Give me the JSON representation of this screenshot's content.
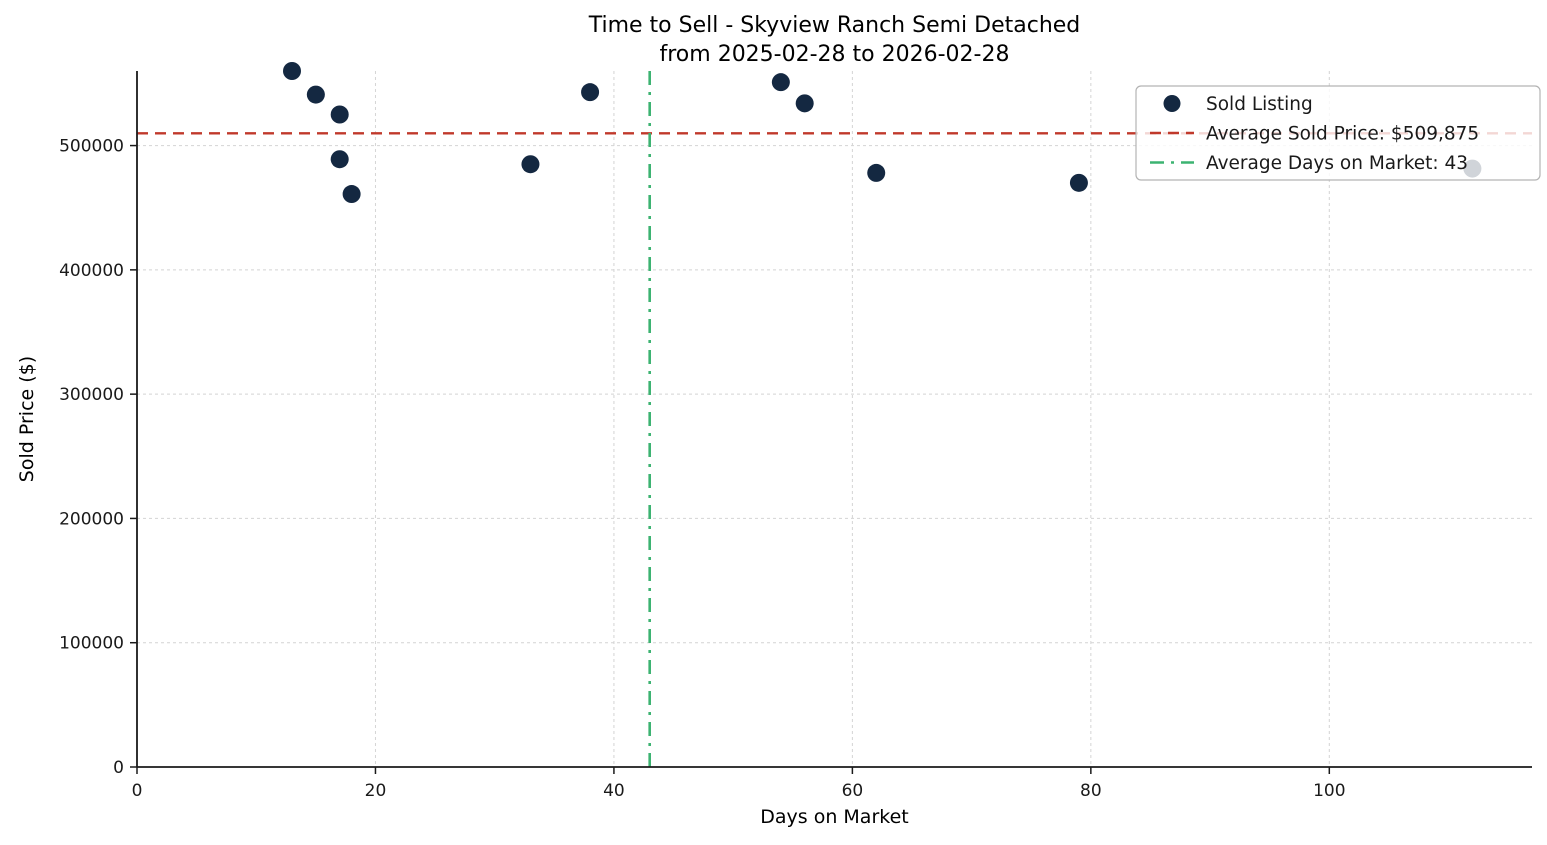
{
  "chart_data": {
    "type": "scatter",
    "title_line1": "Time to Sell - Skyview Ranch Semi Detached",
    "title_line2": "from 2025-02-28 to 2026-02-28",
    "xlabel": "Days on Market",
    "ylabel": "Sold Price ($)",
    "xlim": [
      0,
      117
    ],
    "ylim": [
      0,
      560000
    ],
    "x_ticks": [
      0,
      20,
      40,
      60,
      80,
      100
    ],
    "y_ticks": [
      0,
      100000,
      200000,
      300000,
      400000,
      500000
    ],
    "grid": true,
    "legend_position": "upper right",
    "points": [
      [
        13,
        560000
      ],
      [
        15,
        541000
      ],
      [
        17,
        525000
      ],
      [
        17,
        489000
      ],
      [
        18,
        461000
      ],
      [
        33,
        485000
      ],
      [
        38,
        543000
      ],
      [
        54,
        551000
      ],
      [
        56,
        534000
      ],
      [
        62,
        478000
      ],
      [
        79,
        470000
      ],
      [
        112,
        481500
      ]
    ],
    "avg_sold_price": 509875,
    "avg_days_on_market": 43,
    "legend": [
      {
        "label": "Sold Listing",
        "marker": "dot",
        "color": "#142841"
      },
      {
        "label": "Average Sold Price: $509,875",
        "marker": "dashed",
        "color": "#c0392b"
      },
      {
        "label": "Average Days on Market: 43",
        "marker": "dashdot",
        "color": "#3cb371"
      }
    ],
    "colors": {
      "point": "#142841",
      "avg_price_line": "#c0392b",
      "avg_days_line": "#3cb371",
      "grid": "#d4d4d4",
      "spine": "#1a1a1a",
      "tick_label": "#1a1a1a"
    }
  }
}
